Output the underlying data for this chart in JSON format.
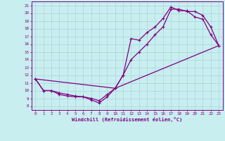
{
  "xlabel": "Windchill (Refroidissement éolien,°C)",
  "bg_color": "#c8eef0",
  "grid_color": "#aad4d8",
  "line_color": "#800080",
  "xlim": [
    -0.5,
    23.5
  ],
  "ylim": [
    7.5,
    21.5
  ],
  "xticks": [
    0,
    1,
    2,
    3,
    4,
    5,
    6,
    7,
    8,
    9,
    10,
    11,
    12,
    13,
    14,
    15,
    16,
    17,
    18,
    19,
    20,
    21,
    22,
    23
  ],
  "yticks": [
    8,
    9,
    10,
    11,
    12,
    13,
    14,
    15,
    16,
    17,
    18,
    19,
    20,
    21
  ],
  "curve1_x": [
    0,
    1,
    2,
    3,
    4,
    5,
    6,
    7,
    8,
    9,
    10,
    11,
    12,
    13,
    14,
    15,
    16,
    17,
    18,
    19,
    20,
    21,
    22,
    23
  ],
  "curve1_y": [
    11.5,
    10.0,
    10.0,
    9.5,
    9.3,
    9.2,
    9.2,
    8.8,
    8.4,
    9.2,
    10.3,
    12.0,
    16.7,
    16.5,
    17.5,
    18.2,
    19.3,
    20.8,
    20.3,
    20.3,
    19.5,
    19.2,
    17.2,
    15.8
  ],
  "curve2_x": [
    0,
    1,
    2,
    3,
    4,
    5,
    6,
    7,
    8,
    9,
    10,
    11,
    12,
    13,
    14,
    15,
    16,
    17,
    18,
    19,
    20,
    21,
    22,
    23
  ],
  "curve2_y": [
    11.5,
    10.0,
    10.0,
    9.7,
    9.5,
    9.3,
    9.2,
    9.0,
    8.7,
    9.5,
    10.3,
    12.0,
    14.0,
    15.0,
    16.0,
    17.2,
    18.2,
    20.5,
    20.5,
    20.2,
    20.2,
    19.7,
    18.2,
    15.8
  ],
  "curve3_x": [
    0,
    10,
    23
  ],
  "curve3_y": [
    11.5,
    10.3,
    15.8
  ]
}
